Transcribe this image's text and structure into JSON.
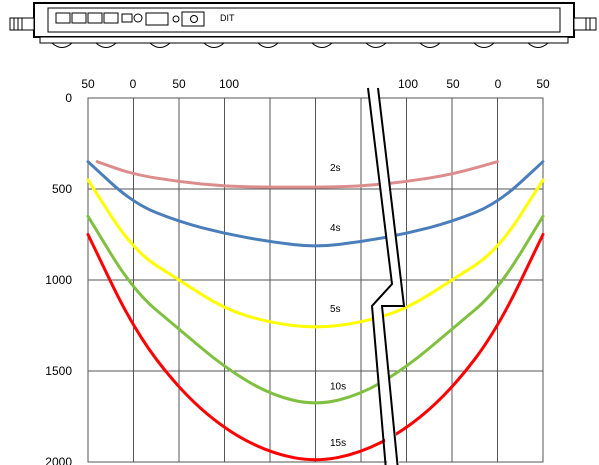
{
  "device": {
    "label": "DIT"
  },
  "chart_data": {
    "type": "line",
    "x_ticks_left": [
      "50",
      "0",
      "50",
      "100"
    ],
    "x_ticks_right": [
      "100",
      "50",
      "0",
      "50"
    ],
    "y_ticks": [
      "0",
      "500",
      "1000",
      "1500",
      "2000"
    ],
    "ylim": [
      0,
      2000
    ],
    "y_inverted": true,
    "grid": true,
    "series": [
      {
        "name": "2s",
        "color": "#dc8c8c",
        "x": [
          -40,
          0,
          50,
          100,
          150,
          200,
          250,
          300,
          350,
          400
        ],
        "y": [
          350,
          420,
          460,
          485,
          490,
          490,
          485,
          460,
          420,
          350
        ]
      },
      {
        "name": "4s",
        "color": "#4a7ebb",
        "x": [
          -50,
          0,
          50,
          100,
          150,
          200,
          250,
          300,
          350,
          400,
          450
        ],
        "y": [
          350,
          580,
          680,
          745,
          790,
          820,
          790,
          745,
          680,
          580,
          350
        ]
      },
      {
        "name": "5s",
        "color": "#ffff00",
        "x": [
          -50,
          0,
          50,
          100,
          150,
          200,
          250,
          300,
          350,
          400,
          450
        ],
        "y": [
          450,
          840,
          1000,
          1160,
          1235,
          1265,
          1235,
          1160,
          1000,
          840,
          450
        ]
      },
      {
        "name": "10s",
        "color": "#80c040",
        "x": [
          -50,
          0,
          50,
          100,
          150,
          200,
          250,
          300,
          350,
          400,
          450
        ],
        "y": [
          650,
          1060,
          1270,
          1480,
          1630,
          1690,
          1630,
          1480,
          1270,
          1060,
          650
        ]
      },
      {
        "name": "15s",
        "color": "#ff0000",
        "x": [
          -50,
          0,
          50,
          100,
          150,
          200,
          250,
          300,
          350,
          400,
          450
        ],
        "y": [
          750,
          1270,
          1600,
          1820,
          1950,
          2000,
          1950,
          1820,
          1600,
          1270,
          750
        ]
      }
    ]
  }
}
